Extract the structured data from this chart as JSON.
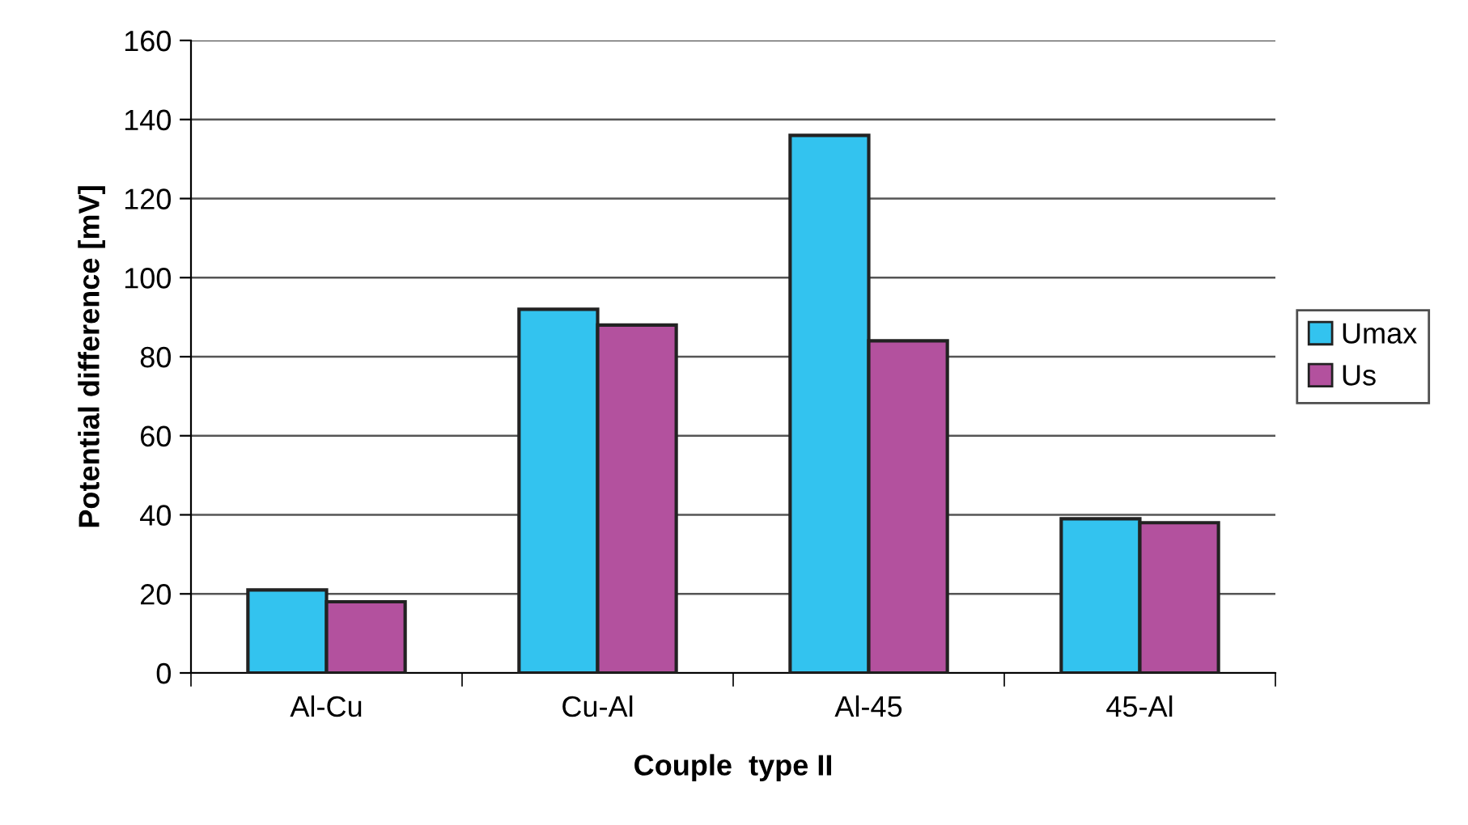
{
  "chart_data": {
    "type": "bar",
    "xlabel": "Couple  type II",
    "ylabel": "Potential difference [mV]",
    "categories": [
      "Al-Cu",
      "Cu-Al",
      "Al-45",
      "45-Al"
    ],
    "series": [
      {
        "name": "Umax",
        "color": "#33c3ef",
        "values": [
          21,
          92,
          136,
          39
        ]
      },
      {
        "name": "Us",
        "color": "#b3519e",
        "values": [
          18,
          88,
          84,
          38
        ]
      }
    ],
    "ylim": [
      0,
      160
    ],
    "yticks": [
      0,
      20,
      40,
      60,
      80,
      100,
      120,
      140,
      160
    ],
    "grid": "y",
    "legend": "right"
  }
}
